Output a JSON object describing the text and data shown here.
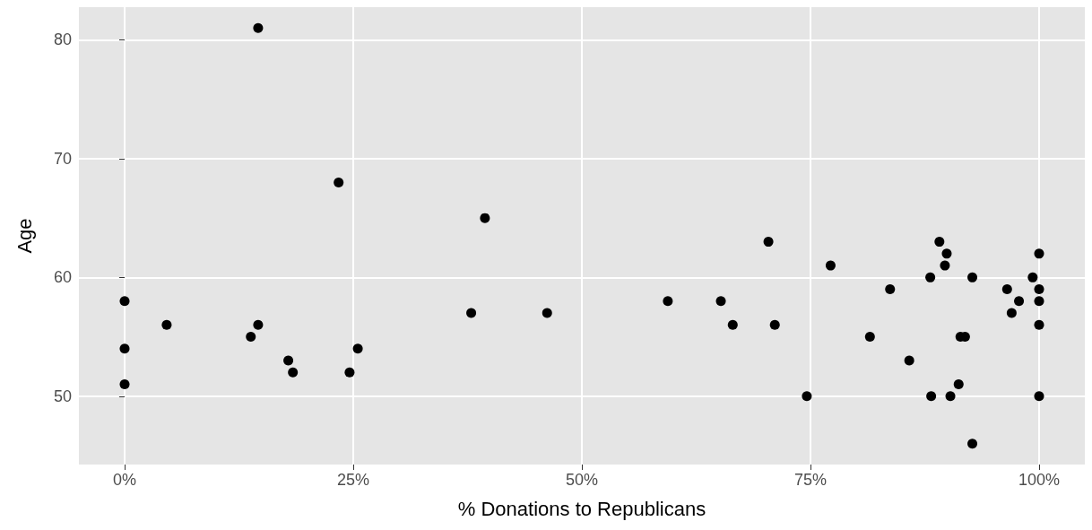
{
  "chart_data": {
    "type": "scatter",
    "xlabel": "% Donations to Republicans",
    "ylabel": "Age",
    "x": [
      0,
      0,
      0,
      4.6,
      13.8,
      14.6,
      14.6,
      17.9,
      18.4,
      23.4,
      24.6,
      25.5,
      37.9,
      39.4,
      46.2,
      59.4,
      65.2,
      66.5,
      70.4,
      71.1,
      74.6,
      77.2,
      81.5,
      83.7,
      85.8,
      88.1,
      88.2,
      89.1,
      89.7,
      89.9,
      90.3,
      91.2,
      91.4,
      91.9,
      92.7,
      92.7,
      96.5,
      97.0,
      97.8,
      99.3,
      100,
      100,
      100,
      100,
      100
    ],
    "values": [
      58,
      54,
      51,
      56,
      55,
      81,
      56,
      53,
      52,
      68,
      52,
      54,
      57,
      65,
      57,
      58,
      58,
      56,
      63,
      56,
      50,
      61,
      55,
      59,
      53,
      60,
      50,
      63,
      61,
      62,
      50,
      51,
      55,
      55,
      60,
      46,
      59,
      57,
      58,
      60,
      62,
      59,
      58,
      56,
      50
    ],
    "color": "#000000",
    "marker": "circle",
    "grid": true,
    "xlim": [
      -5,
      105
    ],
    "xticks": [
      {
        "value": 0,
        "label": "0%"
      },
      {
        "value": 25,
        "label": "25%"
      },
      {
        "value": 50,
        "label": "50%"
      },
      {
        "value": 75,
        "label": "75%"
      },
      {
        "value": 100,
        "label": "100%"
      }
    ],
    "ylim": [
      44.25,
      82.75
    ],
    "yticks": [
      50,
      60,
      70,
      80
    ]
  }
}
